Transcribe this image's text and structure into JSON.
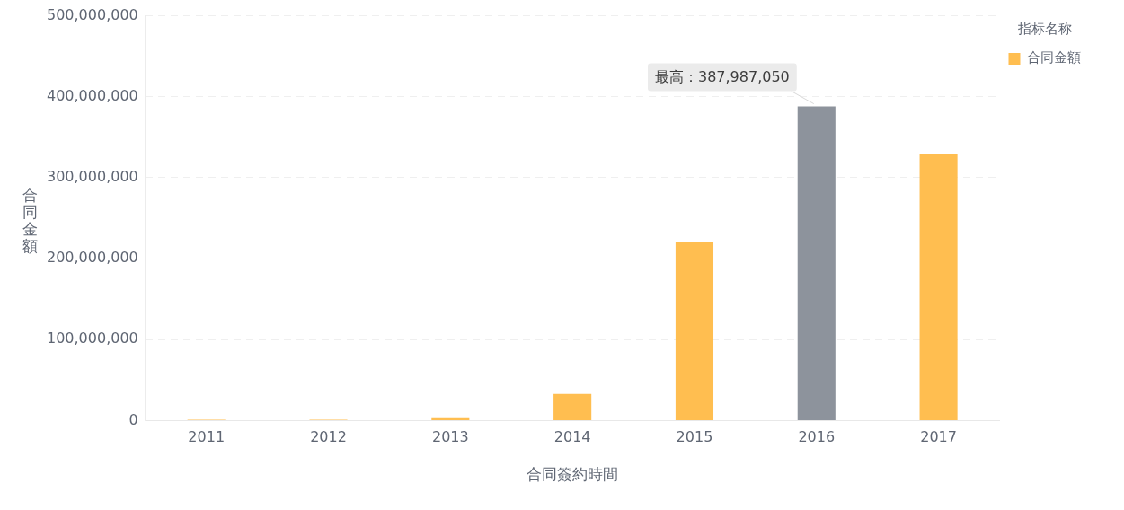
{
  "chart_data": {
    "type": "bar",
    "categories": [
      "2011",
      "2012",
      "2013",
      "2014",
      "2015",
      "2016",
      "2017"
    ],
    "series": [
      {
        "name": "合同金額",
        "color": "#ffbe50",
        "colors": [
          "#ffbe50",
          "#ffbe50",
          "#ffbe50",
          "#ffbe50",
          "#ffbe50",
          "#8d939c",
          "#ffbe50"
        ],
        "values": [
          1000000,
          1000000,
          4000000,
          33000000,
          220000000,
          387987050,
          329000000
        ]
      }
    ],
    "xlabel": "合同簽約時間",
    "ylabel": "合同金額",
    "legend_title": "指标名称",
    "legend": "top right",
    "ylim": [
      0,
      500000000
    ],
    "yticks": [
      0,
      {
        "value": 100000000,
        "label": "100,000,000"
      },
      {
        "value": 200000000,
        "label": "200,000,000"
      },
      {
        "value": 300000000,
        "label": "300,000,000"
      },
      {
        "value": 400000000,
        "label": "400,000,000"
      },
      {
        "value": 500000000,
        "label": "500,000,000"
      }
    ],
    "grid": "y",
    "annotations": [
      {
        "text": "最高：387,987,050",
        "x": "2016",
        "y": 387987050
      }
    ]
  }
}
